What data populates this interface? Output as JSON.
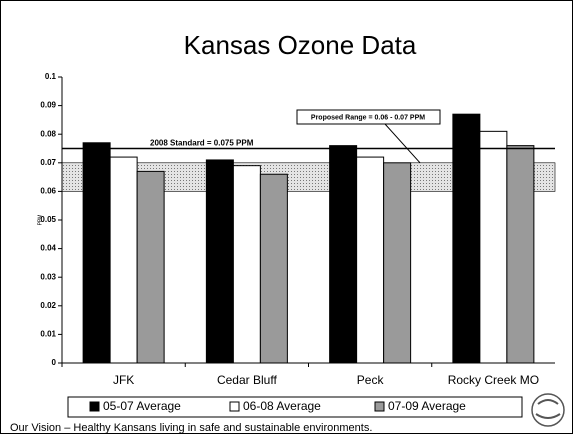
{
  "chart_data": {
    "type": "bar",
    "title": "Kansas Ozone Data",
    "y_label": "PPM",
    "categories": [
      "JFK",
      "Cedar Bluff",
      "Peck",
      "Rocky Creek MO"
    ],
    "series": [
      {
        "name": "05-07 Average",
        "color": "#000000",
        "values": [
          0.077,
          0.071,
          0.076,
          0.087
        ]
      },
      {
        "name": "06-08 Average",
        "color": "#ffffff",
        "values": [
          0.072,
          0.069,
          0.072,
          0.081
        ]
      },
      {
        "name": "07-09 Average",
        "color": "#9a9a9a",
        "values": [
          0.067,
          0.066,
          0.07,
          0.076
        ]
      }
    ],
    "ylim": [
      0,
      0.1
    ],
    "yticks": [
      0,
      0.01,
      0.02,
      0.03,
      0.04,
      0.05,
      0.06,
      0.07,
      0.08,
      0.09,
      0.1
    ],
    "reference_line": {
      "value": 0.075,
      "label": "2008 Standard = 0.075 PPM"
    },
    "reference_band": {
      "range": [
        0.06,
        0.07
      ],
      "label": "Proposed Range = 0.06 - 0.07 PPM"
    },
    "legend": "bottom",
    "footer": "Our Vision – Healthy Kansans living in safe and sustainable environments."
  }
}
